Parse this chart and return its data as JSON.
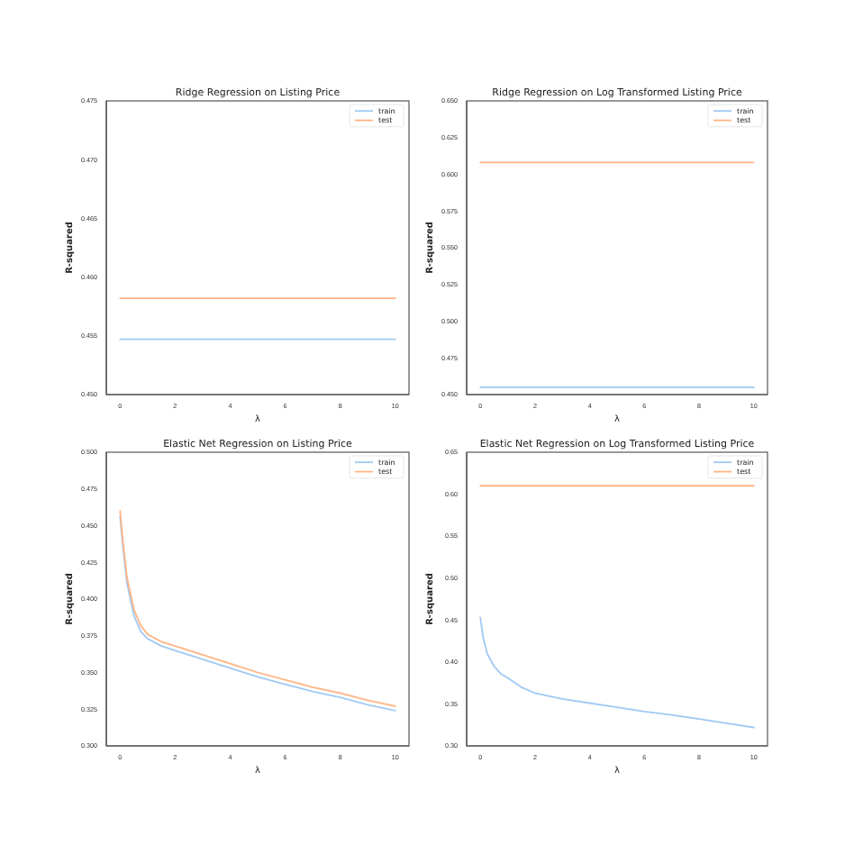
{
  "chart_data": [
    {
      "type": "line",
      "title": "Ridge Regression on Listing Price",
      "xlabel": "λ",
      "ylabel": "R-squared",
      "xlim": [
        -0.5,
        10.5
      ],
      "xticks": [
        0,
        2,
        4,
        6,
        8,
        10
      ],
      "ylim": [
        0.45,
        0.475
      ],
      "yticks": [
        {
          "value": 0.45,
          "label": "0.450"
        },
        {
          "value": 0.455,
          "label": "0.455"
        },
        {
          "value": 0.46,
          "label": "0.460"
        },
        {
          "value": 0.465,
          "label": "0.465"
        },
        {
          "value": 0.47,
          "label": "0.470"
        },
        {
          "value": 0.475,
          "label": "0.475"
        }
      ],
      "legend": "top right",
      "grid": false,
      "series": [
        {
          "name": "train",
          "color": "#a1c9f4",
          "x": [
            0,
            10
          ],
          "values": [
            0.4547,
            0.4547
          ]
        },
        {
          "name": "test",
          "color": "#ffb482",
          "x": [
            0,
            10
          ],
          "values": [
            0.4582,
            0.4582
          ]
        }
      ]
    },
    {
      "type": "line",
      "title": "Ridge Regression on Log Transformed Listing Price",
      "xlabel": "λ",
      "ylabel": "R-squared",
      "xlim": [
        -0.5,
        10.5
      ],
      "xticks": [
        0,
        2,
        4,
        6,
        8,
        10
      ],
      "ylim": [
        0.45,
        0.65
      ],
      "yticks": [
        {
          "value": 0.45,
          "label": "0.450"
        },
        {
          "value": 0.475,
          "label": "0.475"
        },
        {
          "value": 0.5,
          "label": "0.500"
        },
        {
          "value": 0.525,
          "label": "0.525"
        },
        {
          "value": 0.55,
          "label": "0.550"
        },
        {
          "value": 0.575,
          "label": "0.575"
        },
        {
          "value": 0.6,
          "label": "0.600"
        },
        {
          "value": 0.625,
          "label": "0.625"
        },
        {
          "value": 0.65,
          "label": "0.650"
        }
      ],
      "legend": "top right",
      "grid": false,
      "series": [
        {
          "name": "train",
          "color": "#a1c9f4",
          "x": [
            0,
            10
          ],
          "values": [
            0.455,
            0.455
          ]
        },
        {
          "name": "test",
          "color": "#ffb482",
          "x": [
            0,
            10
          ],
          "values": [
            0.608,
            0.608
          ]
        }
      ]
    },
    {
      "type": "line",
      "title": "Elastic Net Regression on Listing Price",
      "xlabel": "λ",
      "ylabel": "R-squared",
      "xlim": [
        -0.5,
        10.5
      ],
      "xticks": [
        0,
        2,
        4,
        6,
        8,
        10
      ],
      "ylim": [
        0.3,
        0.5
      ],
      "yticks": [
        {
          "value": 0.3,
          "label": "0.300"
        },
        {
          "value": 0.325,
          "label": "0.325"
        },
        {
          "value": 0.35,
          "label": "0.350"
        },
        {
          "value": 0.375,
          "label": "0.375"
        },
        {
          "value": 0.4,
          "label": "0.400"
        },
        {
          "value": 0.425,
          "label": "0.425"
        },
        {
          "value": 0.45,
          "label": "0.450"
        },
        {
          "value": 0.475,
          "label": "0.475"
        },
        {
          "value": 0.5,
          "label": "0.500"
        }
      ],
      "legend": "top right",
      "grid": false,
      "series": [
        {
          "name": "train",
          "color": "#a1c9f4",
          "x": [
            0,
            0.1,
            0.25,
            0.5,
            0.75,
            1,
            1.5,
            2,
            3,
            4,
            5,
            6,
            7,
            8,
            9,
            10
          ],
          "values": [
            0.456,
            0.436,
            0.411,
            0.389,
            0.378,
            0.373,
            0.368,
            0.365,
            0.359,
            0.353,
            0.347,
            0.342,
            0.337,
            0.333,
            0.328,
            0.324
          ]
        },
        {
          "name": "test",
          "color": "#ffb482",
          "x": [
            0,
            0.1,
            0.25,
            0.5,
            0.75,
            1,
            1.5,
            2,
            3,
            4,
            5,
            6,
            7,
            8,
            9,
            10
          ],
          "values": [
            0.46,
            0.44,
            0.415,
            0.393,
            0.382,
            0.376,
            0.371,
            0.368,
            0.362,
            0.356,
            0.35,
            0.345,
            0.34,
            0.336,
            0.331,
            0.327
          ]
        }
      ]
    },
    {
      "type": "line",
      "title": "Elastic Net Regression on Log Transformed Listing Price",
      "xlabel": "λ",
      "ylabel": "R-squared",
      "xlim": [
        -0.5,
        10.5
      ],
      "xticks": [
        0,
        2,
        4,
        6,
        8,
        10
      ],
      "ylim": [
        0.3,
        0.65
      ],
      "yticks": [
        {
          "value": 0.3,
          "label": "0.30"
        },
        {
          "value": 0.35,
          "label": "0.35"
        },
        {
          "value": 0.4,
          "label": "0.40"
        },
        {
          "value": 0.45,
          "label": "0.45"
        },
        {
          "value": 0.5,
          "label": "0.50"
        },
        {
          "value": 0.55,
          "label": "0.55"
        },
        {
          "value": 0.6,
          "label": "0.60"
        },
        {
          "value": 0.65,
          "label": "0.65"
        }
      ],
      "legend": "top right",
      "grid": false,
      "series": [
        {
          "name": "train",
          "color": "#a1c9f4",
          "x": [
            0,
            0.1,
            0.25,
            0.5,
            0.75,
            1,
            1.5,
            2,
            3,
            4,
            5,
            6,
            7,
            8,
            9,
            10
          ],
          "values": [
            0.453,
            0.43,
            0.41,
            0.395,
            0.386,
            0.381,
            0.37,
            0.363,
            0.356,
            0.351,
            0.346,
            0.341,
            0.337,
            0.332,
            0.327,
            0.322
          ]
        },
        {
          "name": "test",
          "color": "#ffb482",
          "x": [
            0,
            10
          ],
          "values": [
            0.61,
            0.61
          ]
        }
      ]
    }
  ]
}
